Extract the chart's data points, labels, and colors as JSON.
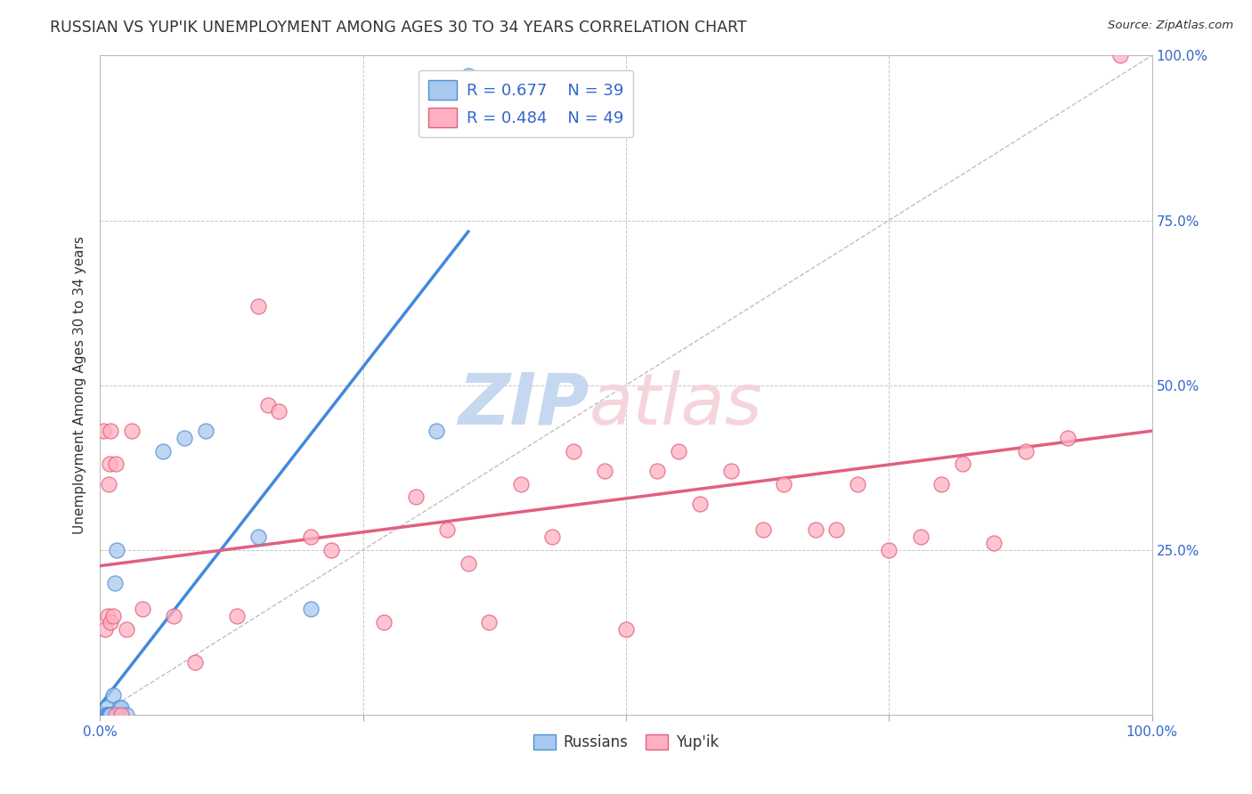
{
  "title": "RUSSIAN VS YUP'IK UNEMPLOYMENT AMONG AGES 30 TO 34 YEARS CORRELATION CHART",
  "source": "Source: ZipAtlas.com",
  "ylabel": "Unemployment Among Ages 30 to 34 years",
  "xlim": [
    0,
    1
  ],
  "ylim": [
    0,
    1
  ],
  "xticks": [
    0,
    0.25,
    0.5,
    0.75,
    1.0
  ],
  "yticks": [
    0,
    0.25,
    0.5,
    0.75,
    1.0
  ],
  "xticklabels": [
    "0.0%",
    "",
    "",
    "",
    "100.0%"
  ],
  "yticklabels": [
    "",
    "25.0%",
    "50.0%",
    "75.0%",
    "100.0%"
  ],
  "background_color": "#ffffff",
  "grid_color": "#c8c8c8",
  "legend_r_blue": "R = 0.677",
  "legend_n_blue": "N = 39",
  "legend_r_pink": "R = 0.484",
  "legend_n_pink": "N = 49",
  "legend_label_blue": "Russians",
  "legend_label_pink": "Yup'ik",
  "blue_fill": "#a8c8f0",
  "blue_edge": "#5090d0",
  "pink_fill": "#ffb0c0",
  "pink_edge": "#e06080",
  "blue_line": "#4488dd",
  "pink_line": "#e06080",
  "ref_line_color": "#b0b0b0",
  "text_color": "#333333",
  "label_color": "#3366CC",
  "russians_x": [
    0.0,
    0.0,
    0.001,
    0.001,
    0.001,
    0.001,
    0.002,
    0.002,
    0.002,
    0.002,
    0.003,
    0.003,
    0.003,
    0.004,
    0.004,
    0.005,
    0.005,
    0.006,
    0.006,
    0.007,
    0.007,
    0.008,
    0.008,
    0.009,
    0.01,
    0.01,
    0.012,
    0.014,
    0.016,
    0.018,
    0.02,
    0.025,
    0.06,
    0.08,
    0.1,
    0.15,
    0.2,
    0.32,
    0.35
  ],
  "russians_y": [
    0.0,
    0.0,
    0.0,
    0.0,
    0.0,
    0.0,
    0.0,
    0.0,
    0.0,
    0.0,
    0.0,
    0.0,
    0.0,
    0.0,
    0.0,
    0.0,
    0.0,
    0.01,
    0.0,
    0.0,
    0.0,
    0.0,
    0.0,
    0.0,
    0.0,
    0.0,
    0.03,
    0.2,
    0.25,
    0.01,
    0.01,
    0.0,
    0.4,
    0.42,
    0.43,
    0.27,
    0.16,
    0.43,
    0.97
  ],
  "yupik_x": [
    0.003,
    0.005,
    0.007,
    0.008,
    0.009,
    0.01,
    0.01,
    0.012,
    0.015,
    0.015,
    0.02,
    0.025,
    0.03,
    0.04,
    0.07,
    0.09,
    0.13,
    0.15,
    0.16,
    0.17,
    0.2,
    0.22,
    0.27,
    0.3,
    0.33,
    0.35,
    0.37,
    0.4,
    0.43,
    0.45,
    0.48,
    0.5,
    0.53,
    0.55,
    0.57,
    0.6,
    0.63,
    0.65,
    0.68,
    0.7,
    0.72,
    0.75,
    0.78,
    0.8,
    0.82,
    0.85,
    0.88,
    0.92,
    0.97
  ],
  "yupik_y": [
    0.43,
    0.13,
    0.15,
    0.35,
    0.38,
    0.14,
    0.43,
    0.15,
    0.38,
    0.0,
    0.0,
    0.13,
    0.43,
    0.16,
    0.15,
    0.08,
    0.15,
    0.62,
    0.47,
    0.46,
    0.27,
    0.25,
    0.14,
    0.33,
    0.28,
    0.23,
    0.14,
    0.35,
    0.27,
    0.4,
    0.37,
    0.13,
    0.37,
    0.4,
    0.32,
    0.37,
    0.28,
    0.35,
    0.28,
    0.28,
    0.35,
    0.25,
    0.27,
    0.35,
    0.38,
    0.26,
    0.4,
    0.42,
    1.0
  ]
}
